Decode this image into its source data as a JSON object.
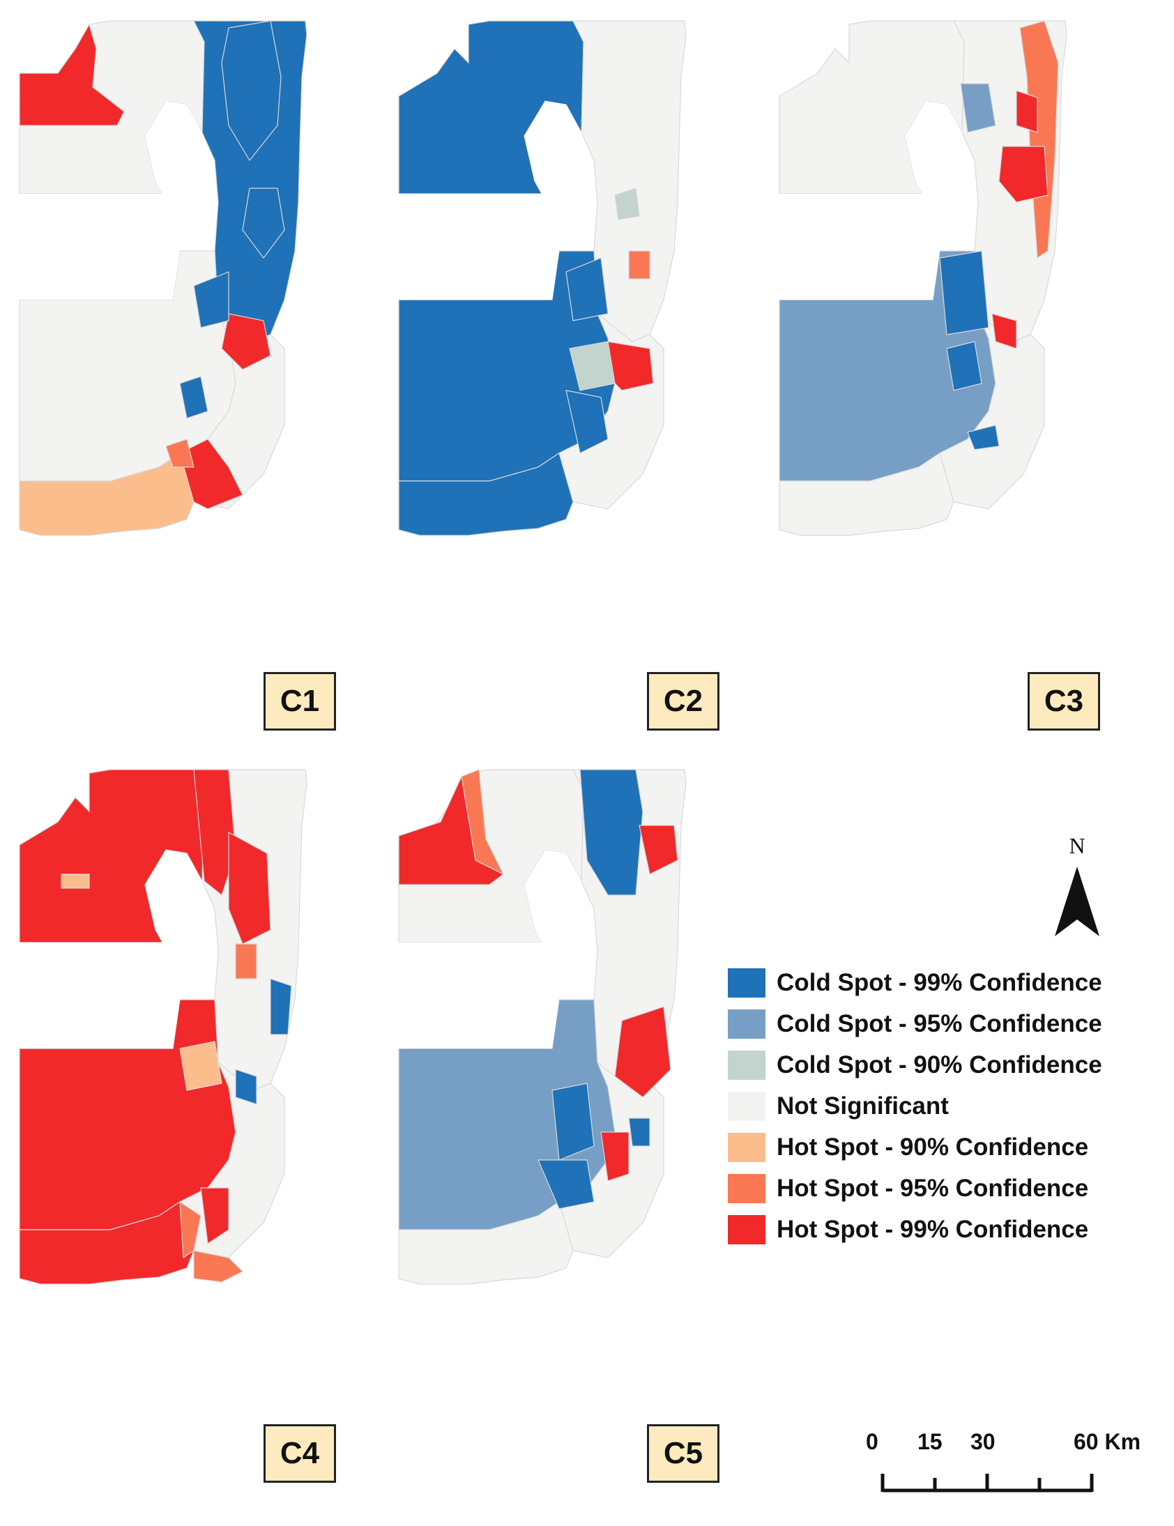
{
  "panels": [
    {
      "label": "C1",
      "theme": "c1"
    },
    {
      "label": "C2",
      "theme": "c2"
    },
    {
      "label": "C3",
      "theme": "c3"
    },
    {
      "label": "C4",
      "theme": "c4"
    },
    {
      "label": "C5",
      "theme": "c5"
    }
  ],
  "legend": {
    "items": [
      {
        "label": "Cold Spot - 99% Confidence",
        "color": "#1f71b8"
      },
      {
        "label": "Cold Spot - 95% Confidence",
        "color": "#779fc5"
      },
      {
        "label": "Cold Spot - 90% Confidence",
        "color": "#c3d3ce"
      },
      {
        "label": "Not Significant",
        "color": "#f3f3f1"
      },
      {
        "label": "Hot Spot - 90% Confidence",
        "color": "#fcbd8c"
      },
      {
        "label": "Hot Spot - 95% Confidence",
        "color": "#f97853"
      },
      {
        "label": "Hot Spot - 99% Confidence",
        "color": "#f1292a"
      }
    ]
  },
  "north_arrow": {
    "letter": "N"
  },
  "scale_bar": {
    "ticks": [
      "0",
      "15",
      "30",
      "60 Km"
    ]
  }
}
